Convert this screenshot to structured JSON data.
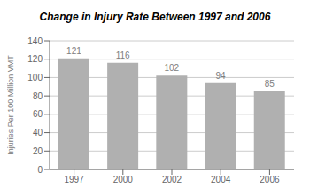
{
  "chart_data": {
    "type": "bar",
    "title": "Change in Injury Rate Between 1997 and 2006",
    "ylabel": "Injuries Per 100 Million VMT",
    "categories": [
      "1997",
      "2000",
      "2002",
      "2004",
      "2006"
    ],
    "values": [
      121,
      116,
      102,
      94,
      85
    ],
    "color": "#b0b0b0",
    "ylim": [
      0,
      140
    ],
    "yticks": [
      0,
      20,
      40,
      60,
      80,
      100,
      120,
      140
    ],
    "grid": true,
    "data_labels": true
  }
}
